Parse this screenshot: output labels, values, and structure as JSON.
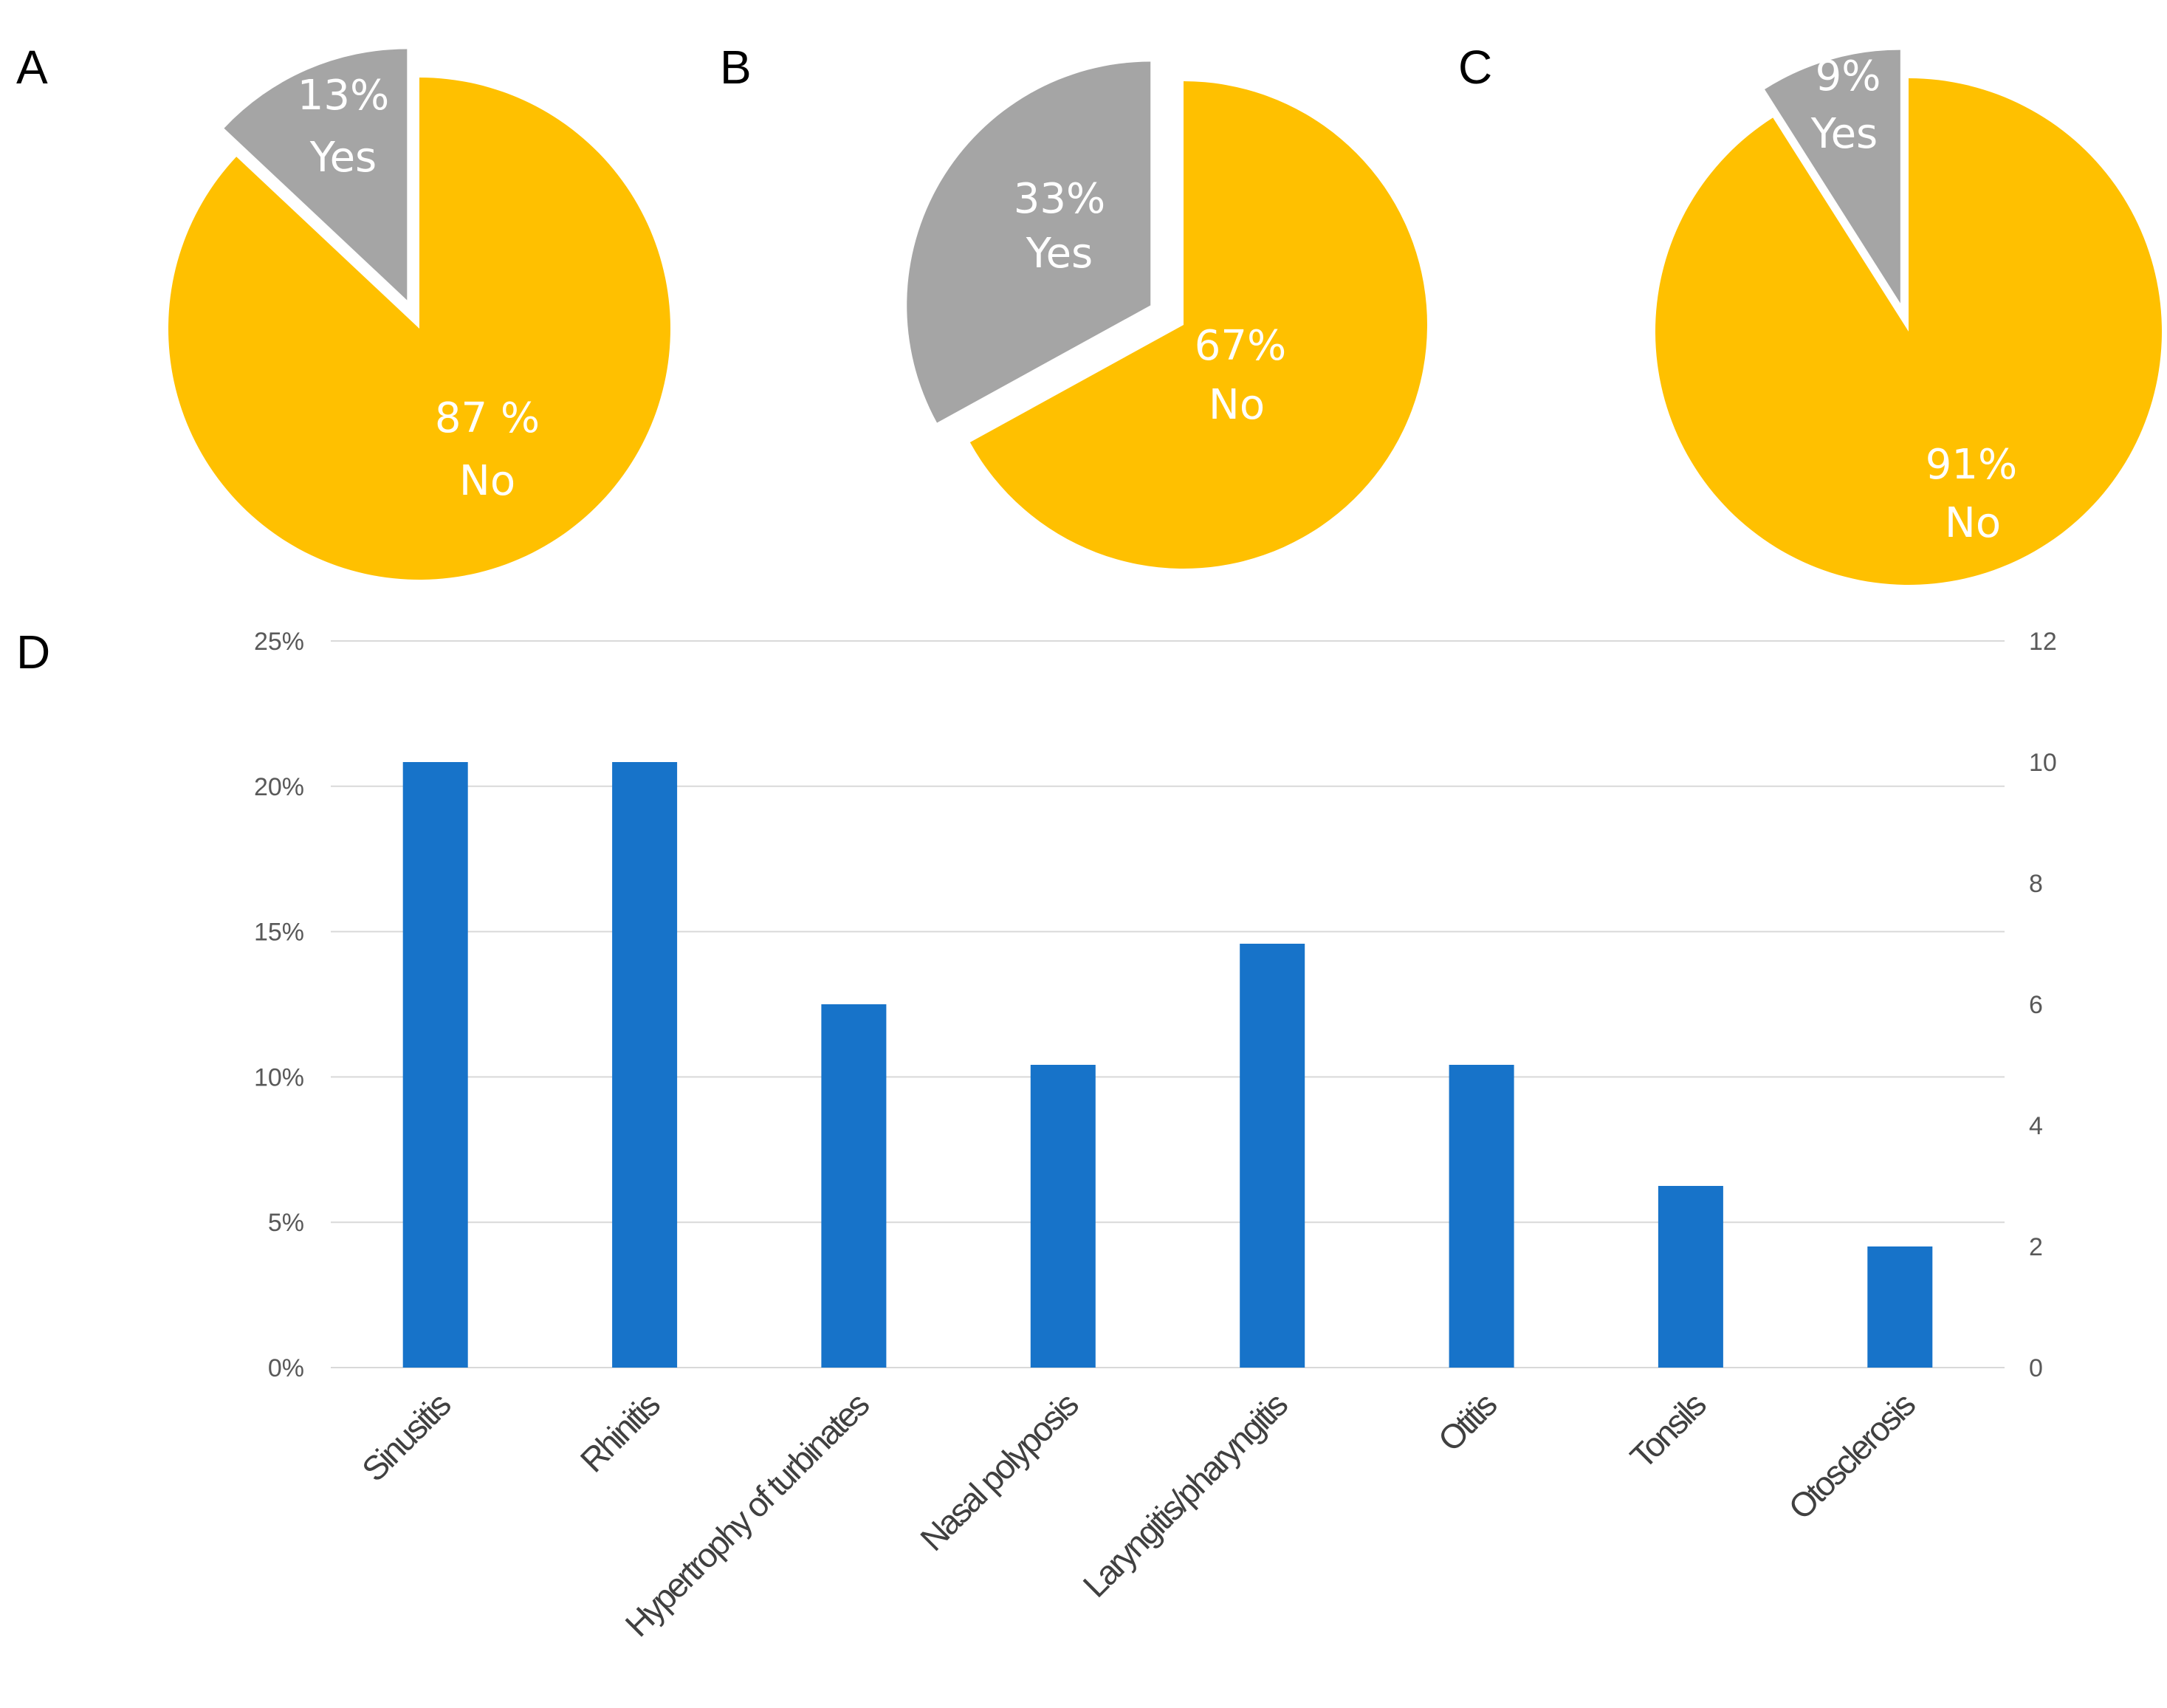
{
  "chart_data": [
    {
      "type": "pie",
      "panel": "A",
      "slices": [
        {
          "label": "Yes",
          "percent_label": "13%",
          "value": 13,
          "color": "#a5a5a5",
          "exploded": true
        },
        {
          "label": "No",
          "percent_label": "87 %",
          "value": 87,
          "color": "#ffc000",
          "exploded": false
        }
      ]
    },
    {
      "type": "pie",
      "panel": "B",
      "slices": [
        {
          "label": "Yes",
          "percent_label": "33%",
          "value": 33,
          "color": "#a5a5a5",
          "exploded": true
        },
        {
          "label": "No",
          "percent_label": "67%",
          "value": 67,
          "color": "#ffc000",
          "exploded": false
        }
      ]
    },
    {
      "type": "pie",
      "panel": "C",
      "slices": [
        {
          "label": "Yes",
          "percent_label": "9%",
          "value": 9,
          "color": "#a5a5a5",
          "exploded": true
        },
        {
          "label": "No",
          "percent_label": "91%",
          "value": 91,
          "color": "#ffc000",
          "exploded": false
        }
      ]
    },
    {
      "type": "bar",
      "panel": "D",
      "categories": [
        "Sinusitis",
        "Rhinitis",
        "Hypertrophy of turbinates",
        "Nasal polyposis",
        "Laryngitis/pharyngitis",
        "Otitis",
        "Tonsils",
        "Otosclerosis"
      ],
      "values": [
        10,
        10,
        6,
        5,
        7,
        5,
        3,
        2
      ],
      "color": "#1773c9",
      "y_left_ticks": [
        "0%",
        "5%",
        "10%",
        "15%",
        "20%",
        "25%"
      ],
      "y_left_lim": [
        0,
        25
      ],
      "y_right_ticks": [
        "0",
        "2",
        "4",
        "6",
        "8",
        "10",
        "12"
      ],
      "y_right_lim": [
        0,
        12
      ],
      "grid": true
    }
  ]
}
